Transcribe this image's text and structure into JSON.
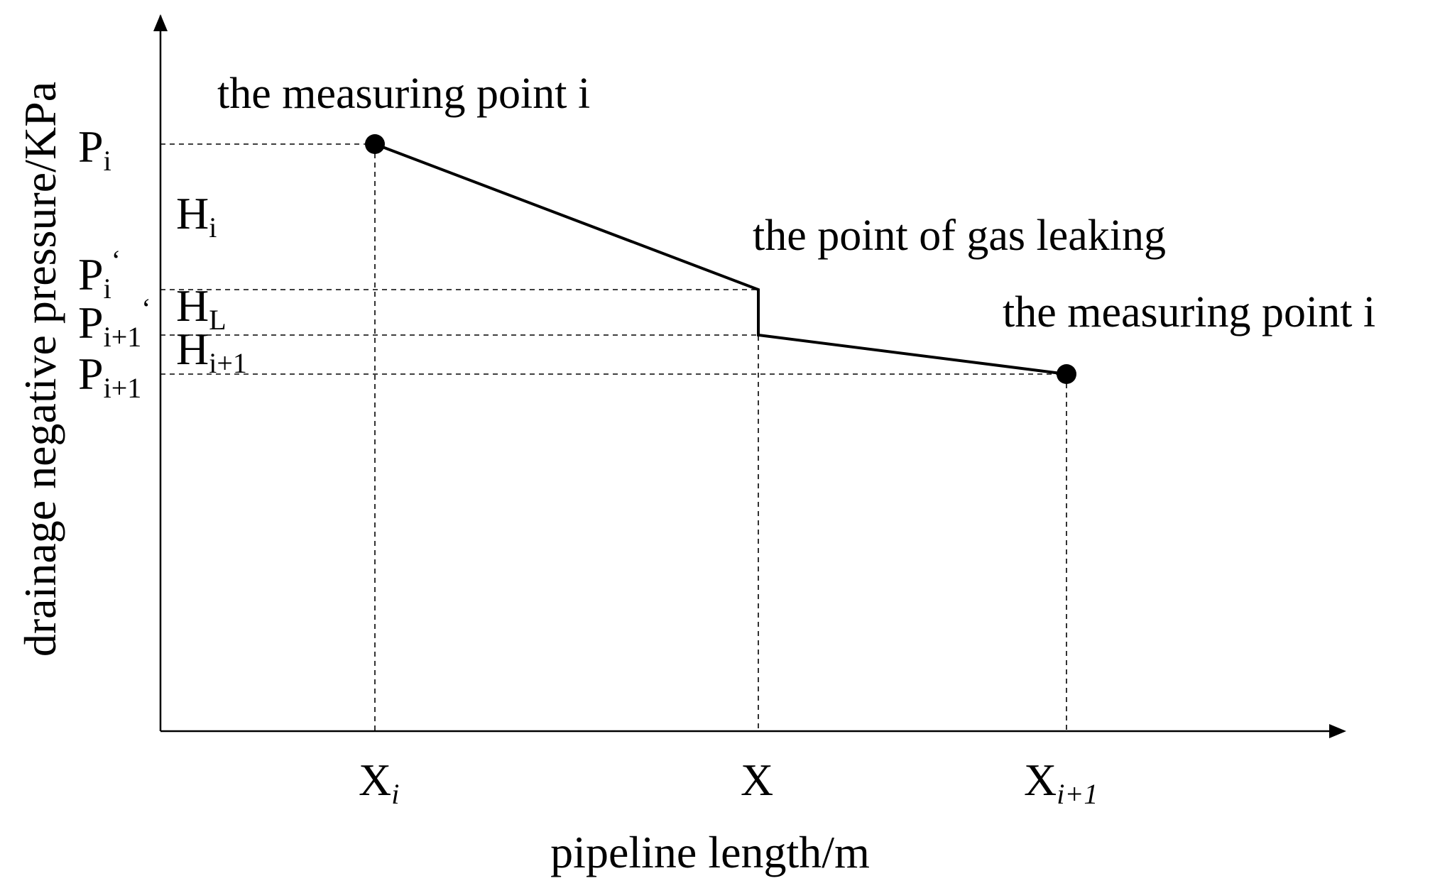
{
  "y_axis": {
    "label": "drainage negative pressure/KPa"
  },
  "x_axis": {
    "label": "pipeline length/m"
  },
  "annotations": {
    "measuring_point_upper": "the measuring point i",
    "gas_leak_point": "the point of gas leaking",
    "measuring_point_lower": "the measuring point i"
  },
  "y_ticks": {
    "p_i": {
      "main": "P",
      "sub": "i",
      "mark": ""
    },
    "p_i_prime": {
      "main": "P",
      "sub": "i",
      "mark": "‘"
    },
    "p_i1_prime": {
      "main": "P",
      "sub": "i+1",
      "mark": "‘"
    },
    "p_i1": {
      "main": "P",
      "sub": "i+1",
      "mark": ""
    }
  },
  "heads": {
    "h_i": {
      "main": "H",
      "sub": "i"
    },
    "h_l": {
      "main": "H",
      "sub": "L"
    },
    "h_i1": {
      "main": "H",
      "sub": "i+1"
    }
  },
  "x_ticks": {
    "x_i": {
      "main": "X",
      "sub": "i"
    },
    "x": {
      "main": "X",
      "sub": ""
    },
    "x_i1": {
      "main": "X",
      "sub": "i+1"
    }
  },
  "colors": {
    "ink": "#000000",
    "background": "#ffffff"
  }
}
